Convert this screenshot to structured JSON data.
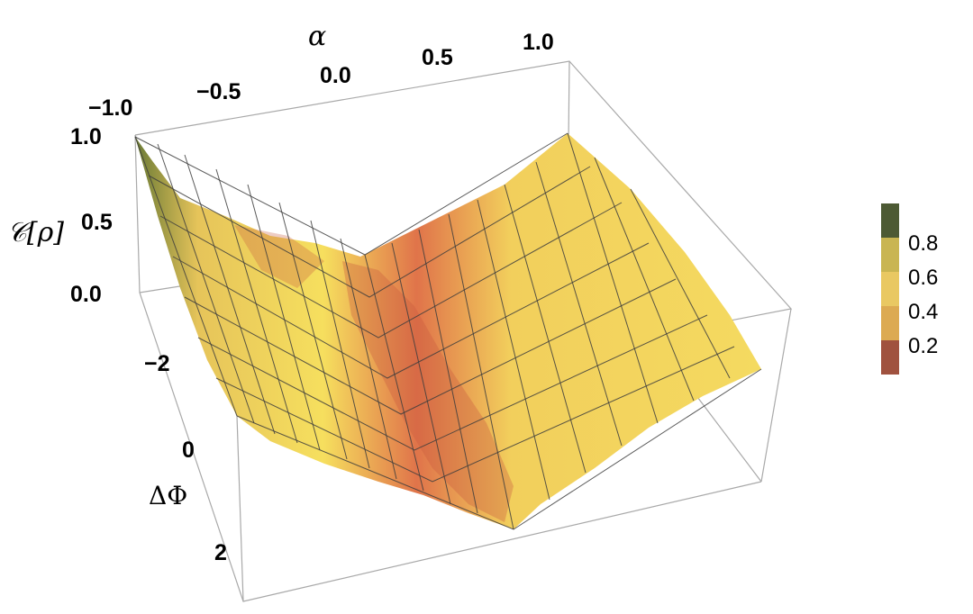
{
  "chart_data": {
    "type": "surface3d",
    "x_axis": {
      "label": "α",
      "ticks": [
        "−1.0",
        "−0.5",
        "0.0",
        "0.5",
        "1.0"
      ],
      "range": [
        -1.0,
        1.0
      ]
    },
    "y_axis": {
      "label": "ΔΦ",
      "ticks": [
        "−2",
        "0",
        "2"
      ],
      "range": [
        -3.14,
        3.14
      ]
    },
    "z_axis": {
      "label": "𝒞[ρ]",
      "ticks": [
        "0.0",
        "0.5",
        "1.0"
      ],
      "range": [
        0.0,
        1.0
      ]
    },
    "surface_samples": {
      "description_points": [
        {
          "alpha": -1.0,
          "dphi": -3.14,
          "z": 1.0
        },
        {
          "alpha": 0.0,
          "dphi": -3.14,
          "z": 0.05
        },
        {
          "alpha": 1.0,
          "dphi": -3.14,
          "z": 0.7
        },
        {
          "alpha": 0.0,
          "dphi": 0.0,
          "z": 0.1
        },
        {
          "alpha": 1.0,
          "dphi": 3.14,
          "z": 0.4
        },
        {
          "alpha": 0.0,
          "dphi": 3.14,
          "z": 0.05
        },
        {
          "alpha": -1.0,
          "dphi": 3.14,
          "z": 0.45
        }
      ]
    },
    "colorbar": {
      "ticks": [
        "0.2",
        "0.4",
        "0.6",
        "0.8"
      ],
      "colors": [
        "#a0523f",
        "#dcaa52",
        "#e9c862",
        "#c9b552",
        "#4d5a34"
      ]
    },
    "grid": false,
    "legend": "right"
  }
}
